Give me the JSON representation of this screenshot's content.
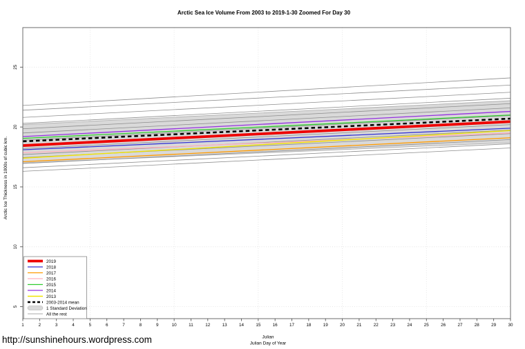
{
  "chart_data": {
    "type": "line",
    "title": "Arctic Sea Ice Volume From 2003 to 2019-1-30 Zoomed For Day 30",
    "xlabel": "Julian",
    "xlabel_sub": "Julian Day of Year",
    "ylabel": "Arctic Ice Thickness in 1000s of cubic km.",
    "xlim": [
      1,
      30
    ],
    "ylim": [
      4.0,
      28.3
    ],
    "x_ticks": [
      1,
      2,
      3,
      4,
      5,
      6,
      7,
      8,
      9,
      10,
      11,
      12,
      13,
      14,
      15,
      16,
      17,
      18,
      19,
      20,
      21,
      22,
      23,
      24,
      25,
      26,
      27,
      28,
      29,
      30
    ],
    "y_ticks": [
      5,
      10,
      15,
      20,
      25
    ],
    "grid_x": [
      5,
      10,
      15,
      20,
      25,
      30
    ],
    "grid_y": [
      5,
      10,
      15,
      20,
      25
    ],
    "grid_color": "#DFDFDF",
    "border_color": "#6B6B6B",
    "legend_position": "bottom-left",
    "x": [
      1,
      30
    ],
    "series": [
      {
        "name": "2019",
        "color": "#EE0000",
        "width": 3.8,
        "z": 7,
        "values": [
          18.45,
          20.45
        ]
      },
      {
        "name": "2018",
        "color": "#3434D3",
        "width": 1.3,
        "z": 4,
        "values": [
          18.1,
          19.9
        ]
      },
      {
        "name": "2017",
        "color": "#FF9B00",
        "width": 1.3,
        "z": 1,
        "values": [
          17.1,
          19.1
        ]
      },
      {
        "name": "2016",
        "color": "#FFB0BE",
        "width": 1.3,
        "z": 2,
        "values": [
          17.85,
          19.5
        ]
      },
      {
        "name": "2015",
        "color": "#2ECC2E",
        "width": 1.3,
        "z": 5,
        "values": [
          19.05,
          21.0
        ]
      },
      {
        "name": "2014",
        "color": "#9430E0",
        "width": 1.3,
        "z": 6,
        "values": [
          19.2,
          21.3
        ]
      },
      {
        "name": "2013",
        "color": "#EFE300",
        "width": 1.4,
        "z": 3,
        "values": [
          17.4,
          19.7
        ]
      },
      {
        "name": "2003-2014 mean",
        "color": "#000000",
        "width": 2.6,
        "z": 8,
        "dash": "5.5,4",
        "values": [
          18.8,
          20.7
        ]
      }
    ],
    "band": {
      "name": "1 Standard Deviation",
      "color": "#D9D9D9",
      "edge_color": "#ABABAB",
      "x": [
        1,
        30
      ],
      "lower": [
        17.0,
        18.7
      ],
      "upper": [
        20.2,
        22.2
      ]
    },
    "rest": {
      "name": "All the rest",
      "color": "#8C8C8C",
      "width": 0.8,
      "x": [
        1,
        30
      ],
      "lines": [
        [
          21.8,
          24.1
        ],
        [
          21.4,
          23.5
        ],
        [
          20.8,
          22.9
        ],
        [
          20.3,
          22.4
        ],
        [
          19.85,
          21.95
        ],
        [
          19.5,
          21.6
        ],
        [
          18.9,
          20.95
        ],
        [
          18.2,
          20.2
        ],
        [
          17.7,
          19.75
        ],
        [
          17.45,
          19.45
        ],
        [
          16.95,
          18.95
        ],
        [
          16.6,
          18.6
        ],
        [
          16.3,
          18.25
        ]
      ]
    }
  },
  "footer": {
    "url": "http://sunshinehours.wordpress.com"
  }
}
